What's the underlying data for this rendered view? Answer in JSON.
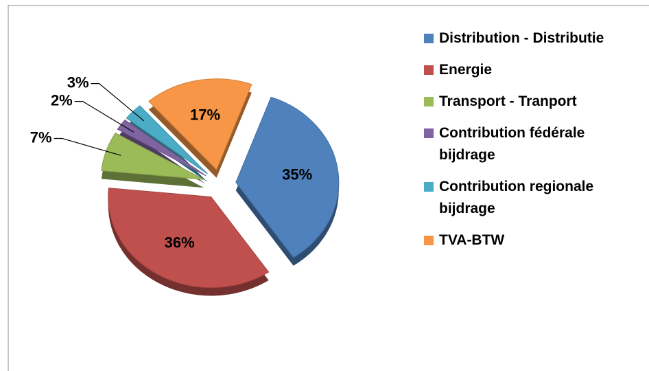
{
  "chart_data": {
    "type": "pie",
    "categories": [
      "Distribution - Distributie",
      "Energie",
      "Transport - Tranport",
      "Contribution fédérale bijdrage",
      "Contribution regionale bijdrage",
      "TVA-BTW"
    ],
    "values": [
      35,
      36,
      7,
      2,
      3,
      17
    ],
    "value_labels": [
      "35%",
      "36%",
      "7%",
      "2%",
      "3%",
      "17%"
    ],
    "colors": [
      "#4f81bd",
      "#c0504d",
      "#9bbb59",
      "#8064a2",
      "#4bacc6",
      "#f79646"
    ],
    "legend": "right"
  }
}
